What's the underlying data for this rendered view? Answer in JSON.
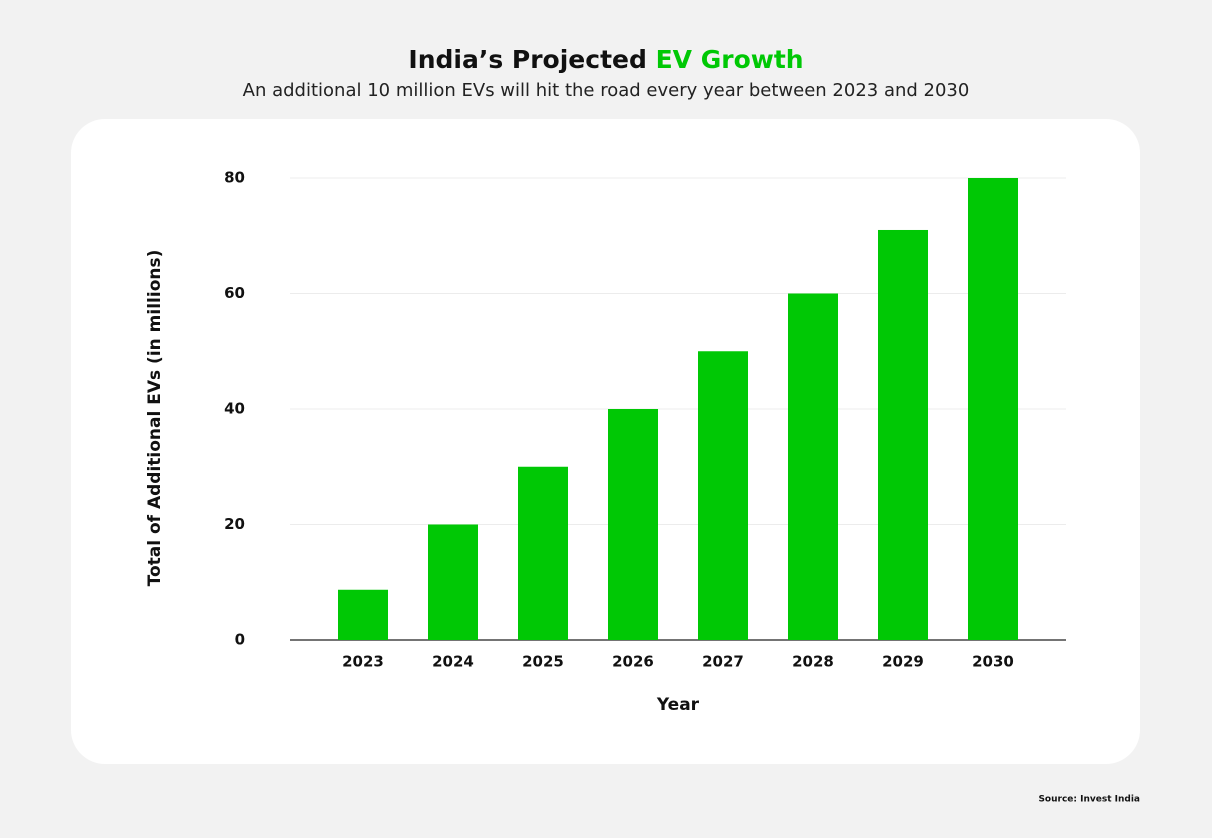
{
  "chart_data": {
    "type": "bar",
    "title": "India’s Projected",
    "title_highlight": "EV Growth",
    "title_highlight_color": "#00c805",
    "subtitle": "An additional 10 million EVs will hit the road every year between 2023 and 2030",
    "categories": [
      "2023",
      "2024",
      "2025",
      "2026",
      "2027",
      "2028",
      "2029",
      "2030"
    ],
    "values": [
      8.7,
      20,
      30,
      40,
      50,
      60,
      71,
      80
    ],
    "color": "#00c805",
    "ylim": [
      0,
      80
    ],
    "yticks": [
      0,
      20,
      40,
      60,
      80
    ],
    "grid": true,
    "x_label": "Year",
    "y_label": "Total of Additional EVs (in millions)",
    "source": "Source: Invest India"
  }
}
